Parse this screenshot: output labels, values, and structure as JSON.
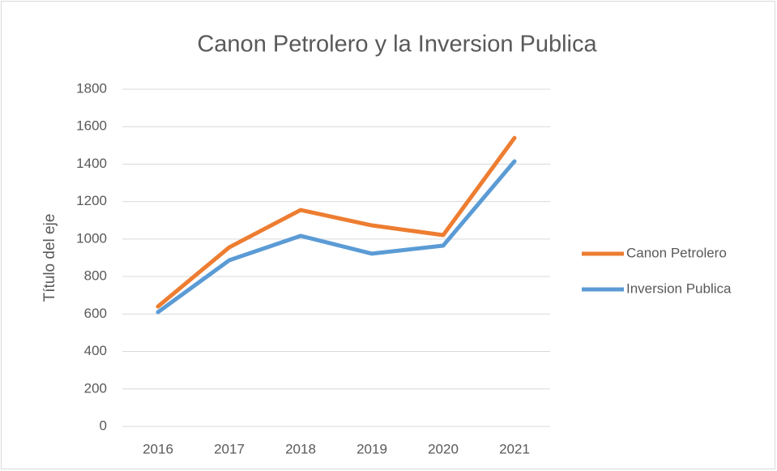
{
  "chart_data": {
    "type": "line",
    "title": "Canon Petrolero y la Inversion Publica",
    "y_label": "Título del eje",
    "categories": [
      "2016",
      "2017",
      "2018",
      "2019",
      "2020",
      "2021"
    ],
    "series": [
      {
        "name": "Canon Petrolero",
        "color": "#ed7d31",
        "values": [
          640,
          956,
          1155,
          1073,
          1021,
          1540
        ]
      },
      {
        "name": "Inversion Publica",
        "color": "#5b9bd5",
        "values": [
          610,
          887,
          1017,
          922,
          965,
          1415
        ]
      }
    ],
    "ylim": [
      0,
      1800
    ],
    "yticks": [
      0,
      200,
      400,
      600,
      800,
      1000,
      1200,
      1400,
      1600,
      1800
    ],
    "grid": true,
    "legend": "right"
  }
}
